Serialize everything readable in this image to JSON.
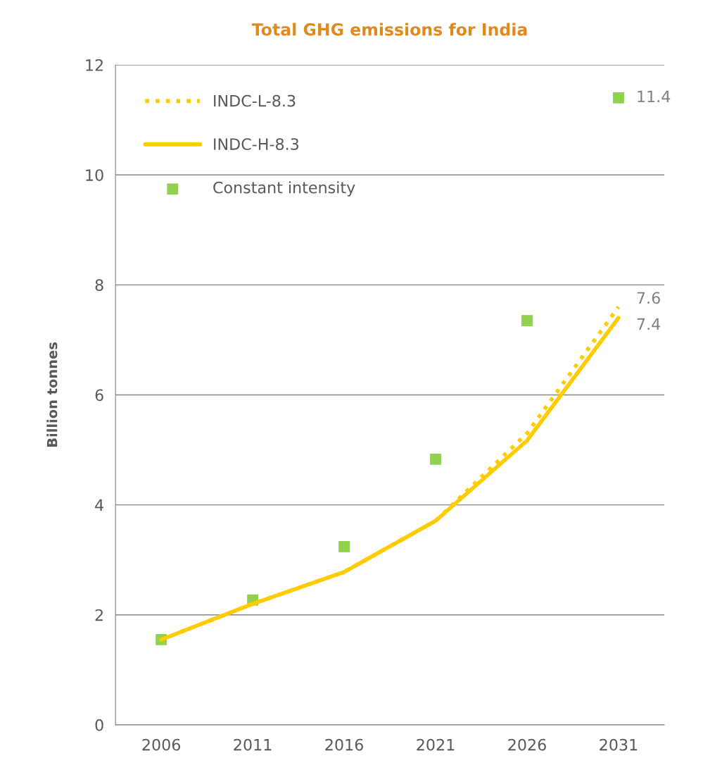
{
  "chart_data": {
    "type": "line",
    "title": "Total GHG emissions for India",
    "ylabel": "Billion tonnes",
    "categories": [
      "2006",
      "2011",
      "2016",
      "2021",
      "2026",
      "2031"
    ],
    "series": [
      {
        "name": "INDC-L-8.3",
        "line_style": "dotted",
        "color": "#ffcc00",
        "values": [
          1.55,
          2.2,
          2.78,
          3.71,
          5.3,
          7.6
        ],
        "value_labels": [
          null,
          null,
          null,
          null,
          null,
          "7.6"
        ]
      },
      {
        "name": "INDC-H-8.3",
        "line_style": "solid",
        "color": "#ffcc00",
        "values": [
          1.55,
          2.2,
          2.78,
          3.71,
          5.17,
          7.4
        ],
        "value_labels": [
          null,
          null,
          null,
          null,
          null,
          "7.4"
        ]
      },
      {
        "name": "Constant intensity",
        "type": "scatter",
        "marker": "square",
        "color": "#92d050",
        "values": [
          1.55,
          2.27,
          3.24,
          4.83,
          7.35,
          11.4
        ],
        "value_labels": [
          null,
          null,
          null,
          null,
          null,
          "11.4"
        ]
      }
    ],
    "ylim": [
      0,
      12
    ],
    "yticks": [
      0,
      2,
      4,
      6,
      8,
      10,
      12
    ],
    "grid": "y",
    "legend": "top left"
  }
}
